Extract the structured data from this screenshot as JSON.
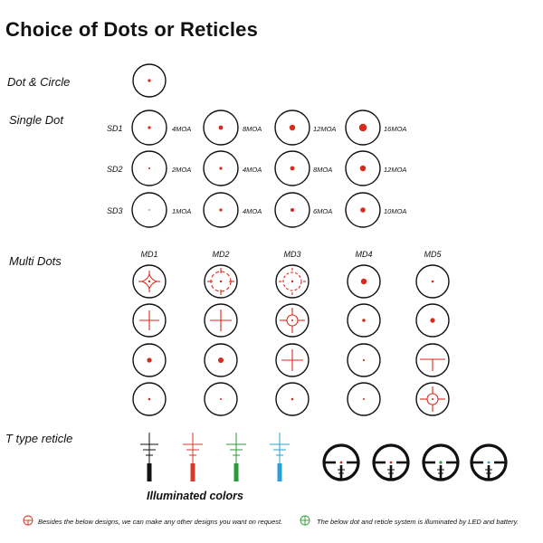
{
  "title": "Choice of Dots or Reticles",
  "sections": {
    "dot_circle": "Dot & Circle",
    "single_dot": "Single Dot",
    "multi_dots": "Multi Dots",
    "t_type": "T type reticle"
  },
  "single_dot_rows": [
    {
      "code": "SD1",
      "moa": [
        "4MOA",
        "8MOA",
        "12MOA",
        "16MOA"
      ]
    },
    {
      "code": "SD2",
      "moa": [
        "2MOA",
        "4MOA",
        "8MOA",
        "12MOA"
      ]
    },
    {
      "code": "SD3",
      "moa": [
        "1MOA",
        "4MOA",
        "6MOA",
        "10MOA"
      ]
    }
  ],
  "multi_dot_columns": [
    "MD1",
    "MD2",
    "MD3",
    "MD4",
    "MD5"
  ],
  "illuminated_colors_label": "Illuminated colors",
  "illumination_colors": [
    "#111111",
    "#d63a2a",
    "#2a9a3a",
    "#2aa0d8"
  ],
  "accent_color": "#d62a1a",
  "notes": {
    "left": "Besides the below designs, we can make any other designs you want on request.",
    "right": "The below dot and reticle system is illuminated by LED and battery."
  }
}
